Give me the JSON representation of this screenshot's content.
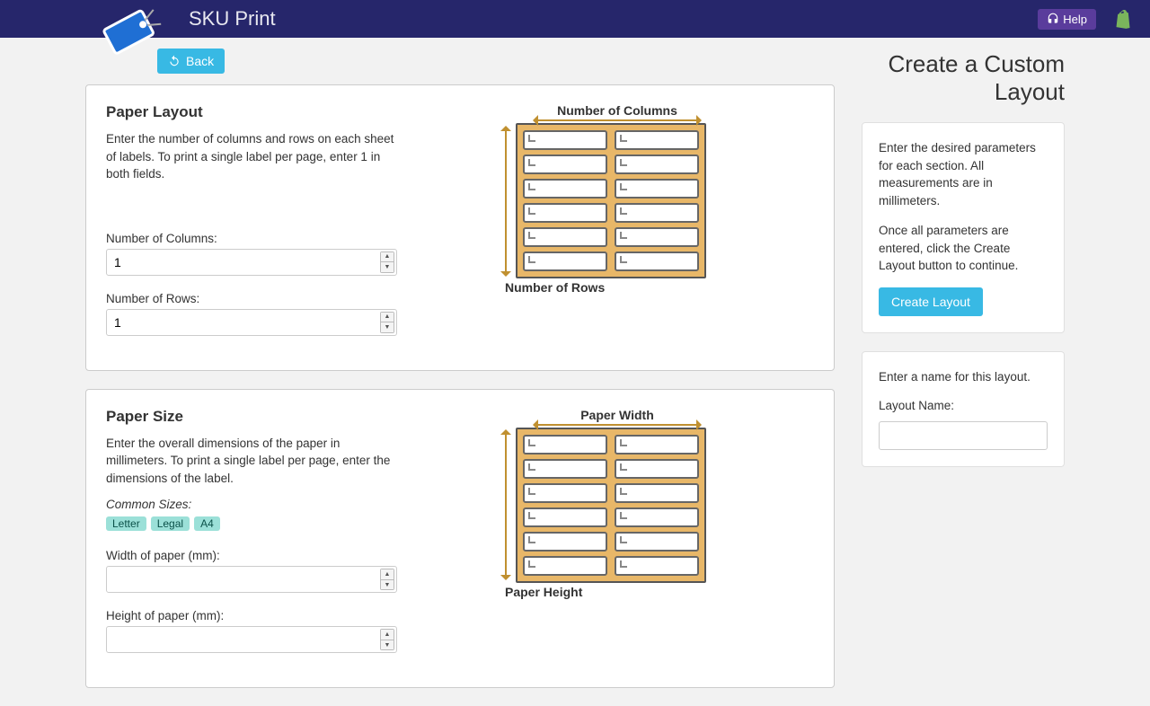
{
  "header": {
    "app_title": "SKU Print",
    "help_label": "Help"
  },
  "back_label": "Back",
  "page_title": "Create a Custom Layout",
  "paper_layout": {
    "title": "Paper Layout",
    "desc": "Enter the number of columns and rows on each sheet of labels. To print a single label per page, enter 1 in both fields.",
    "cols_label": "Number of Columns:",
    "cols_value": "1",
    "rows_label": "Number of Rows:",
    "rows_value": "1",
    "diagram": {
      "top_label": "Number of Columns",
      "bottom_label": "Number of Rows",
      "grid_cols": 2,
      "grid_rows": 6,
      "frame_fill": "#e8b768",
      "arrow_color": "#c09030",
      "cell_bg": "#ffffff",
      "cell_border": "#666666"
    }
  },
  "paper_size": {
    "title": "Paper Size",
    "desc": "Enter the overall dimensions of the paper in millimeters. To print a single label per page, enter the dimensions of the label.",
    "common_label": "Common Sizes:",
    "badges": [
      "Letter",
      "Legal",
      "A4"
    ],
    "width_label": "Width of paper (mm):",
    "width_value": "",
    "height_label": "Height of paper (mm):",
    "height_value": "",
    "diagram": {
      "top_label": "Paper Width",
      "bottom_label": "Paper Height"
    }
  },
  "sidebar": {
    "instructions1": "Enter the desired parameters for each section. All measurements are in millimeters.",
    "instructions2": "Once all parameters are entered, click the Create Layout button to continue.",
    "create_label": "Create Layout",
    "name_prompt": "Enter a name for this layout.",
    "name_label": "Layout Name:",
    "name_value": ""
  },
  "colors": {
    "topbar": "#26266b",
    "help_btn": "#5a3c9c",
    "primary_btn": "#38b9e4",
    "badge_bg": "#9be0d8",
    "body_bg": "#f2f2f2",
    "card_bg": "#ffffff",
    "border": "#cccccc"
  }
}
